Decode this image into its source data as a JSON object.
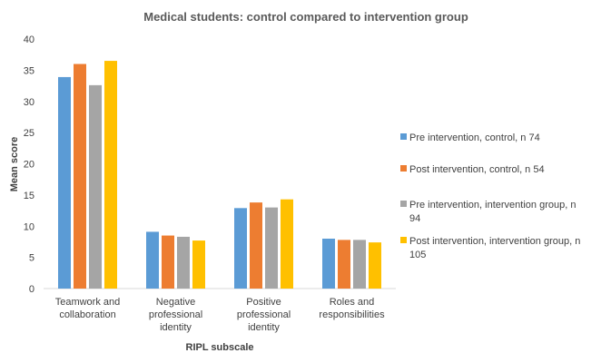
{
  "chart_data": {
    "type": "bar",
    "title": "Medical students: control compared to intervention group",
    "xlabel": "RIPL subscale",
    "ylabel": "Mean score",
    "ylim": [
      0,
      40
    ],
    "yticks": [
      0,
      5,
      10,
      15,
      20,
      25,
      30,
      35,
      40
    ],
    "grid": false,
    "legend_position": "right",
    "categories": [
      [
        "Teamwork and",
        "collaboration"
      ],
      [
        "Negative",
        "professional",
        "identity"
      ],
      [
        "Positive",
        "professional",
        "identity"
      ],
      [
        "Roles and",
        "responsibilities"
      ]
    ],
    "series": [
      {
        "name": "Pre intervention, control, n 74",
        "legend_lines": [
          "Pre intervention, control, n 74"
        ],
        "color": "#5B9BD5",
        "values": [
          33.9,
          9.1,
          12.9,
          8.0
        ]
      },
      {
        "name": "Post intervention, control, n 54",
        "legend_lines": [
          "Post intervention, control, n 54"
        ],
        "color": "#ED7D31",
        "values": [
          36.0,
          8.5,
          13.8,
          7.8
        ]
      },
      {
        "name": "Pre intervention, intervention group, n 94",
        "legend_lines": [
          "Pre intervention, intervention group, n",
          "94"
        ],
        "color": "#A5A5A5",
        "values": [
          32.6,
          8.3,
          13.0,
          7.8
        ]
      },
      {
        "name": "Post intervention, intervention group, n 105",
        "legend_lines": [
          "Post intervention, intervention group, n",
          "105"
        ],
        "color": "#FFC000",
        "values": [
          36.5,
          7.7,
          14.3,
          7.4
        ]
      }
    ]
  }
}
